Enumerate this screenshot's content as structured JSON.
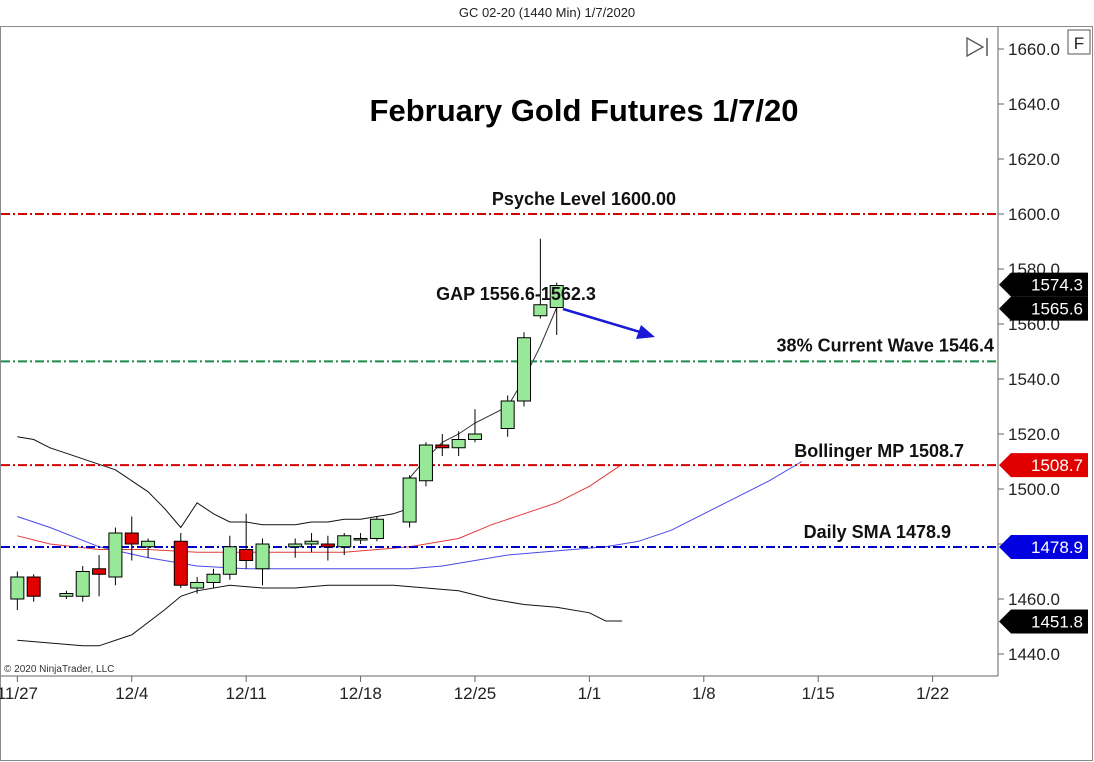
{
  "header": {
    "title": "GC 02-20 (1440 Min)  1/7/2020"
  },
  "toolbar": {
    "f_label": "F"
  },
  "copyright": "© 2020 NinjaTrader, LLC",
  "colors": {
    "bull": "#97e897",
    "bear": "#e00000",
    "red_level": "#d40000",
    "green_level": "#1a8a4a",
    "blue_level": "#0000c8",
    "bb_band": "#111111",
    "bb_mid": "#e33b3b",
    "sma": "#4a4ae6",
    "tag_black": "#000000",
    "tag_red": "#e00000",
    "tag_blue": "#0000e0"
  },
  "chart_data": {
    "type": "candlestick",
    "title": "February Gold Futures 1/7/20",
    "ylim": [
      1432,
      1668
    ],
    "yticks": [
      "1660.0",
      "1640.0",
      "1620.0",
      "1600.0",
      "1580.0",
      "1560.0",
      "1540.0",
      "1520.0",
      "1500.0",
      "1480.0",
      "1460.0",
      "1440.0"
    ],
    "ytick_values": [
      1660,
      1640,
      1620,
      1600,
      1580,
      1560,
      1540,
      1520,
      1500,
      1480,
      1460,
      1440
    ],
    "xticks": [
      {
        "label": "11/27",
        "day": 0
      },
      {
        "label": "12/4",
        "day": 7
      },
      {
        "label": "12/11",
        "day": 14
      },
      {
        "label": "12/18",
        "day": 21
      },
      {
        "label": "12/25",
        "day": 28
      },
      {
        "label": "1/1",
        "day": 35
      },
      {
        "label": "1/8",
        "day": 42
      },
      {
        "label": "1/15",
        "day": 49
      },
      {
        "label": "1/22",
        "day": 56
      }
    ],
    "x_range_days": [
      -1,
      60
    ],
    "candles": [
      {
        "day": 0,
        "o": 1460,
        "h": 1470,
        "l": 1456,
        "c": 1468
      },
      {
        "day": 1,
        "o": 1468,
        "h": 1469,
        "l": 1459,
        "c": 1461
      },
      {
        "day": 3,
        "o": 1461,
        "h": 1463,
        "l": 1460,
        "c": 1462
      },
      {
        "day": 4,
        "o": 1461,
        "h": 1472,
        "l": 1459,
        "c": 1470
      },
      {
        "day": 5,
        "o": 1471,
        "h": 1476,
        "l": 1461,
        "c": 1469
      },
      {
        "day": 6,
        "o": 1468,
        "h": 1486,
        "l": 1465,
        "c": 1484
      },
      {
        "day": 7,
        "o": 1484,
        "h": 1490,
        "l": 1474,
        "c": 1480
      },
      {
        "day": 8,
        "o": 1479,
        "h": 1482,
        "l": 1475,
        "c": 1481
      },
      {
        "day": 10,
        "o": 1481,
        "h": 1484,
        "l": 1464,
        "c": 1465
      },
      {
        "day": 11,
        "o": 1464,
        "h": 1468,
        "l": 1462,
        "c": 1466
      },
      {
        "day": 12,
        "o": 1466,
        "h": 1471,
        "l": 1464,
        "c": 1469
      },
      {
        "day": 13,
        "o": 1469,
        "h": 1483,
        "l": 1467,
        "c": 1479
      },
      {
        "day": 14,
        "o": 1478,
        "h": 1491,
        "l": 1471,
        "c": 1474
      },
      {
        "day": 15,
        "o": 1471,
        "h": 1482,
        "l": 1465,
        "c": 1480
      },
      {
        "day": 17,
        "o": 1479,
        "h": 1482,
        "l": 1475,
        "c": 1480
      },
      {
        "day": 18,
        "o": 1480,
        "h": 1484,
        "l": 1477,
        "c": 1481
      },
      {
        "day": 19,
        "o": 1480,
        "h": 1483,
        "l": 1474,
        "c": 1479
      },
      {
        "day": 20,
        "o": 1479,
        "h": 1484,
        "l": 1476,
        "c": 1483
      },
      {
        "day": 21,
        "o": 1482,
        "h": 1484,
        "l": 1480,
        "c": 1482
      },
      {
        "day": 22,
        "o": 1482,
        "h": 1490,
        "l": 1481,
        "c": 1489
      },
      {
        "day": 24,
        "o": 1488,
        "h": 1505,
        "l": 1486,
        "c": 1504
      },
      {
        "day": 25,
        "o": 1503,
        "h": 1517,
        "l": 1501,
        "c": 1516
      },
      {
        "day": 26,
        "o": 1516,
        "h": 1520,
        "l": 1512,
        "c": 1515
      },
      {
        "day": 27,
        "o": 1515,
        "h": 1521,
        "l": 1512,
        "c": 1518
      },
      {
        "day": 28,
        "o": 1518,
        "h": 1529,
        "l": 1517,
        "c": 1520
      },
      {
        "day": 30,
        "o": 1522,
        "h": 1534,
        "l": 1519,
        "c": 1532
      },
      {
        "day": 31,
        "o": 1532,
        "h": 1557,
        "l": 1530,
        "c": 1555
      },
      {
        "day": 32,
        "o": 1563,
        "h": 1591,
        "l": 1562,
        "c": 1567
      },
      {
        "day": 33,
        "o": 1566,
        "h": 1575,
        "l": 1556,
        "c": 1574
      }
    ],
    "levels": [
      {
        "name": "psyche",
        "value": 1600.0,
        "label": "Psyche Level 1600.00",
        "color_key": "red_level"
      },
      {
        "name": "fib38",
        "value": 1546.4,
        "label": "38% Current Wave 1546.4",
        "color_key": "green_level"
      },
      {
        "name": "bollinger-mp",
        "value": 1508.7,
        "label": "Bollinger MP 1508.7",
        "color_key": "red_level"
      },
      {
        "name": "daily-sma",
        "value": 1478.9,
        "label": "Daily SMA 1478.9",
        "color_key": "blue_level"
      }
    ],
    "gap_annotation": {
      "label": "GAP 1556.6-1562.3",
      "low": 1556.6,
      "high": 1562.3
    },
    "price_tags": [
      {
        "label": "1574.3",
        "value": 1574.3,
        "color_key": "tag_black"
      },
      {
        "label": "1565.6",
        "value": 1565.6,
        "color_key": "tag_black"
      },
      {
        "label": "1508.7",
        "value": 1508.7,
        "color_key": "tag_red"
      },
      {
        "label": "1478.9",
        "value": 1478.9,
        "color_key": "tag_blue"
      },
      {
        "label": "1451.8",
        "value": 1451.8,
        "color_key": "tag_black"
      }
    ],
    "bollinger_upper": [
      [
        0,
        1519
      ],
      [
        1,
        1518
      ],
      [
        2,
        1515
      ],
      [
        3,
        1513
      ],
      [
        4,
        1511
      ],
      [
        5,
        1509
      ],
      [
        6,
        1507
      ],
      [
        7,
        1503
      ],
      [
        8,
        1499
      ],
      [
        9,
        1493
      ],
      [
        10,
        1486
      ],
      [
        11,
        1495
      ],
      [
        12,
        1491
      ],
      [
        13,
        1488
      ],
      [
        14,
        1488
      ],
      [
        15,
        1487
      ],
      [
        16,
        1487
      ],
      [
        17,
        1487
      ],
      [
        18,
        1488
      ],
      [
        19,
        1488
      ],
      [
        20,
        1489
      ],
      [
        21,
        1489
      ],
      [
        22,
        1490
      ],
      [
        23,
        1491
      ],
      [
        24,
        1493
      ]
    ],
    "bollinger_mid": [
      [
        0,
        1483
      ],
      [
        2,
        1480
      ],
      [
        5,
        1478
      ],
      [
        8,
        1478
      ],
      [
        11,
        1477
      ],
      [
        14,
        1477
      ],
      [
        17,
        1477
      ],
      [
        20,
        1477
      ],
      [
        24,
        1479
      ],
      [
        27,
        1482
      ],
      [
        29,
        1487
      ],
      [
        31,
        1491
      ],
      [
        33,
        1495
      ],
      [
        35,
        1501
      ],
      [
        36,
        1505
      ],
      [
        37,
        1509
      ]
    ],
    "bollinger_lower": [
      [
        0,
        1445
      ],
      [
        2,
        1444
      ],
      [
        4,
        1443
      ],
      [
        5,
        1443
      ],
      [
        7,
        1447
      ],
      [
        9,
        1456
      ],
      [
        10,
        1461
      ],
      [
        11,
        1463
      ],
      [
        13,
        1465
      ],
      [
        15,
        1464
      ],
      [
        17,
        1464
      ],
      [
        19,
        1465
      ],
      [
        21,
        1465
      ],
      [
        23,
        1465
      ],
      [
        25,
        1464
      ],
      [
        27,
        1463
      ],
      [
        29,
        1460
      ],
      [
        31,
        1458
      ],
      [
        33,
        1457
      ],
      [
        35,
        1455
      ],
      [
        36,
        1452
      ],
      [
        37,
        1452
      ]
    ],
    "sma_series": [
      [
        0,
        1490
      ],
      [
        2,
        1486
      ],
      [
        5,
        1479
      ],
      [
        8,
        1475
      ],
      [
        11,
        1472
      ],
      [
        14,
        1471
      ],
      [
        17,
        1471
      ],
      [
        20,
        1471
      ],
      [
        24,
        1471
      ],
      [
        26,
        1472
      ],
      [
        28,
        1474
      ],
      [
        30,
        1476
      ],
      [
        32,
        1477
      ],
      [
        34,
        1478
      ],
      [
        36,
        1479
      ],
      [
        38,
        1481
      ],
      [
        40,
        1485
      ],
      [
        42,
        1491
      ],
      [
        44,
        1497
      ],
      [
        46,
        1503
      ],
      [
        48,
        1510
      ]
    ],
    "close_line": [
      [
        24,
        1504
      ],
      [
        25,
        1511
      ],
      [
        26,
        1517
      ],
      [
        27,
        1520
      ],
      [
        28,
        1524
      ],
      [
        30,
        1530
      ],
      [
        31,
        1540
      ],
      [
        32,
        1552
      ],
      [
        33,
        1566
      ]
    ]
  }
}
